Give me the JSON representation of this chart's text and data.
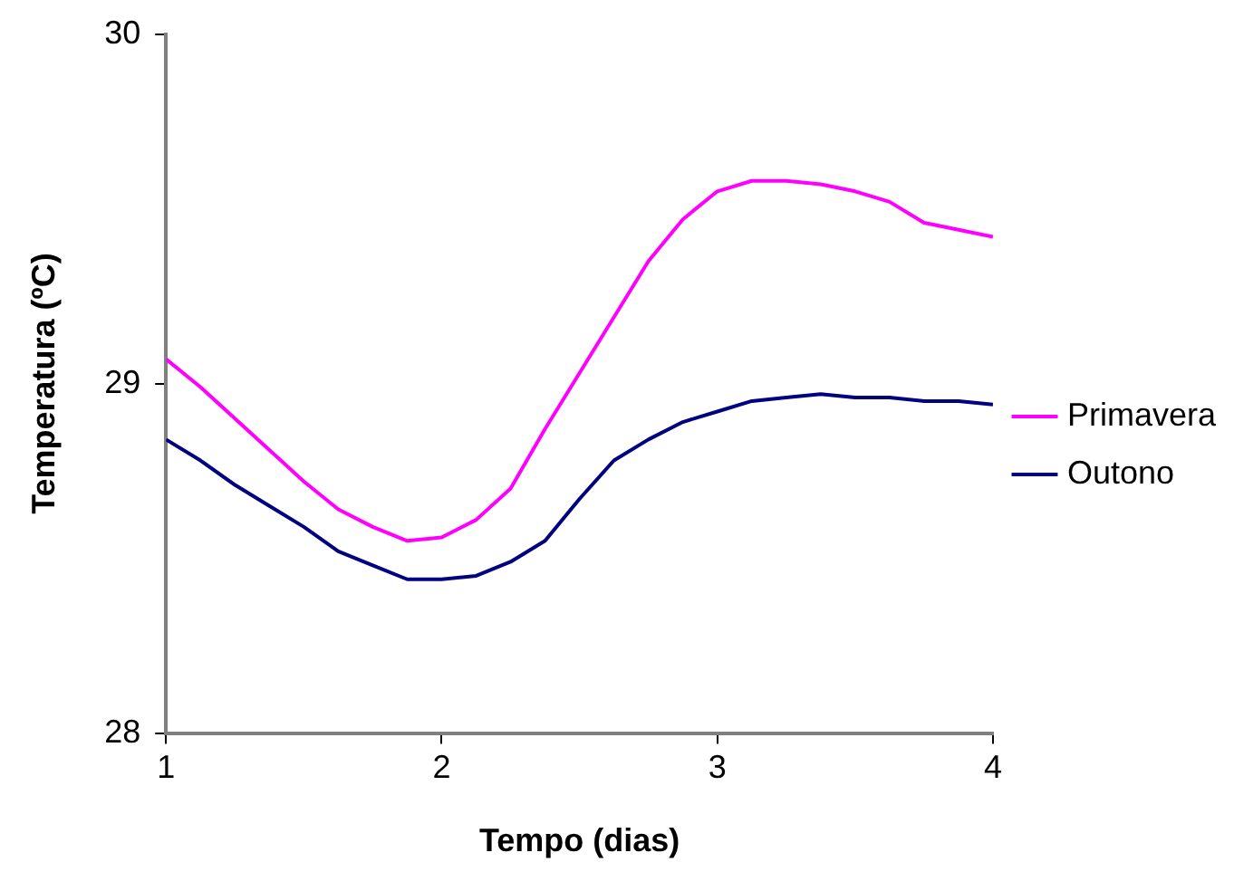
{
  "chart_data": {
    "type": "line",
    "xlabel": "Tempo (dias)",
    "ylabel": "Temperatura (ºC)",
    "x": [
      1,
      1.125,
      1.25,
      1.375,
      1.5,
      1.625,
      1.75,
      1.875,
      2,
      2.125,
      2.25,
      2.375,
      2.5,
      2.625,
      2.75,
      2.875,
      3,
      3.125,
      3.25,
      3.375,
      3.5,
      3.625,
      3.75,
      3.875,
      4
    ],
    "series": [
      {
        "name": "Primavera",
        "color": "#ff00ff",
        "values": [
          29.07,
          28.99,
          28.9,
          28.81,
          28.72,
          28.64,
          28.59,
          28.55,
          28.56,
          28.61,
          28.7,
          28.87,
          29.03,
          29.19,
          29.35,
          29.47,
          29.55,
          29.58,
          29.58,
          29.57,
          29.55,
          29.52,
          29.46,
          29.44,
          29.42
        ]
      },
      {
        "name": "Outono",
        "color": "#000080",
        "values": [
          28.84,
          28.78,
          28.71,
          28.65,
          28.59,
          28.52,
          28.48,
          28.44,
          28.44,
          28.45,
          28.49,
          28.55,
          28.67,
          28.78,
          28.84,
          28.89,
          28.92,
          28.95,
          28.96,
          28.97,
          28.96,
          28.96,
          28.95,
          28.95,
          28.94
        ]
      }
    ],
    "xlim": [
      1,
      4
    ],
    "xticks": [
      1,
      2,
      3,
      4
    ],
    "ylim": [
      28,
      30
    ],
    "yticks": [
      28,
      29,
      30
    ],
    "grid": false,
    "legend": "right",
    "marker": "none",
    "line_style": "solid"
  }
}
